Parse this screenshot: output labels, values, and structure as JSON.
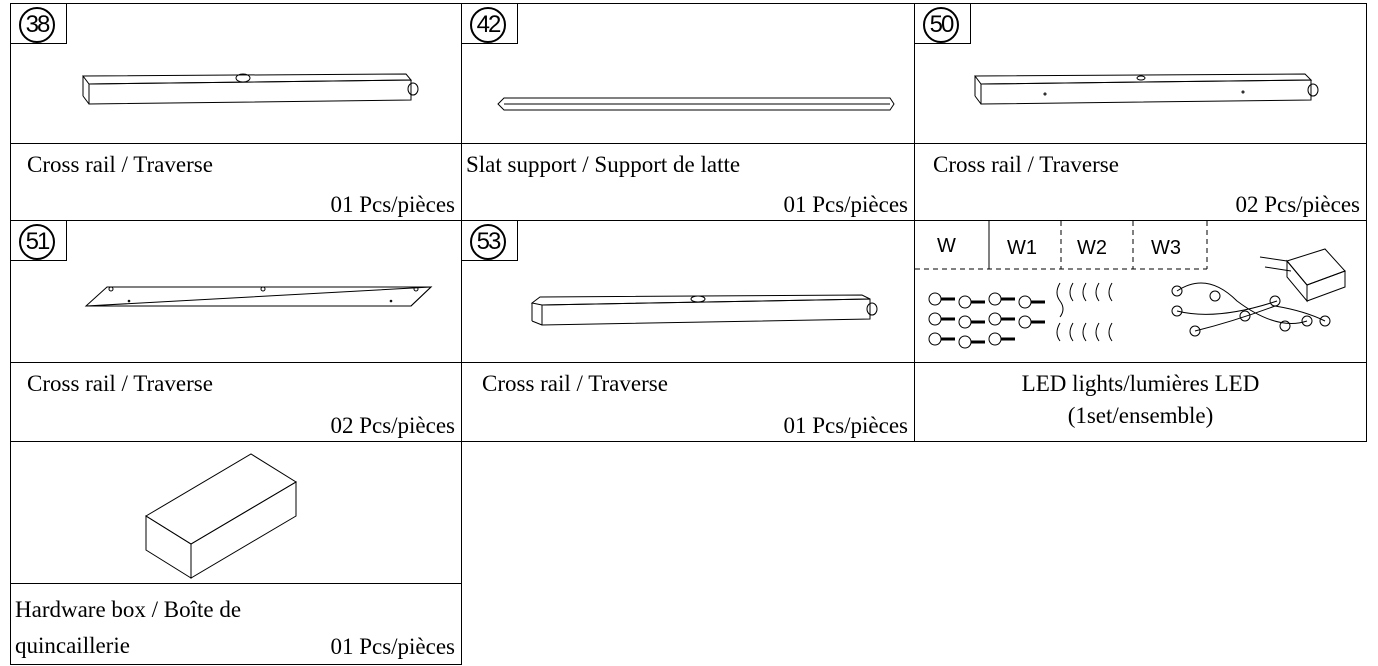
{
  "parts": [
    {
      "number": "38",
      "name": "Cross rail / Traverse",
      "quantity": "01 Pcs/pièces"
    },
    {
      "number": "42",
      "name": "Slat support / Support de latte",
      "quantity": "01 Pcs/pièces"
    },
    {
      "number": "50",
      "name": "Cross rail / Traverse",
      "quantity": "02 Pcs/pièces"
    },
    {
      "number": "51",
      "name": "Cross rail / Traverse",
      "quantity": "02 Pcs/pièces"
    },
    {
      "number": "53",
      "name": "Cross rail / Traverse",
      "quantity": "01 Pcs/pièces"
    },
    {
      "hardware_labels": [
        "W",
        "W1",
        "W2",
        "W3"
      ],
      "name": "LED lights/lumières LED",
      "quantity": "(1set/ensemble)"
    },
    {
      "name": "Hardware box / Boîte de quincaillerie",
      "quantity": "01 Pcs/pièces"
    }
  ]
}
